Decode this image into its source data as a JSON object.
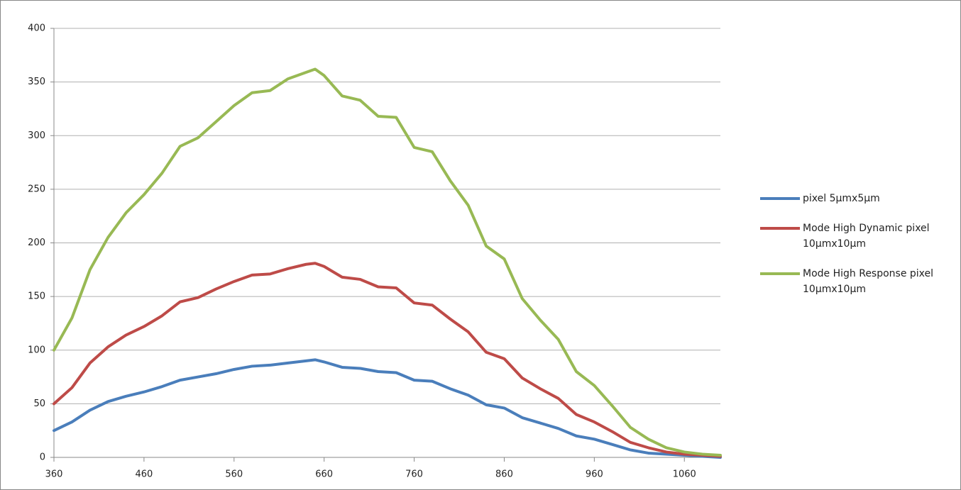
{
  "chart_data": {
    "type": "line",
    "x": [
      360,
      380,
      400,
      420,
      440,
      460,
      480,
      500,
      520,
      540,
      560,
      580,
      600,
      620,
      640,
      650,
      660,
      680,
      700,
      720,
      740,
      760,
      780,
      800,
      820,
      840,
      860,
      880,
      900,
      920,
      940,
      960,
      980,
      1000,
      1020,
      1040,
      1060,
      1080,
      1100
    ],
    "series": [
      {
        "name": "pixel 5µmx5µm",
        "color": "#4a7ebb",
        "values": [
          25,
          33,
          44,
          52,
          57,
          61,
          66,
          72,
          75,
          78,
          82,
          85,
          86,
          88,
          90,
          91,
          89,
          84,
          83,
          80,
          79,
          72,
          71,
          64,
          58,
          49,
          46,
          37,
          32,
          27,
          20,
          17,
          12,
          7,
          4,
          3,
          2,
          1,
          0
        ]
      },
      {
        "name": "Mode High Dynamic pixel 10µmx10µm",
        "color": "#be4b48",
        "values": [
          50,
          65,
          88,
          103,
          114,
          122,
          132,
          145,
          149,
          157,
          164,
          170,
          171,
          176,
          180,
          181,
          178,
          168,
          166,
          159,
          158,
          144,
          142,
          129,
          117,
          98,
          92,
          74,
          64,
          55,
          40,
          33,
          24,
          14,
          9,
          5,
          3,
          2,
          1
        ]
      },
      {
        "name": "Mode High Response pixel 10µmx10µm",
        "color": "#98b954",
        "values": [
          100,
          130,
          175,
          205,
          228,
          245,
          265,
          290,
          298,
          313,
          328,
          340,
          342,
          353,
          359,
          362,
          356,
          337,
          333,
          318,
          317,
          289,
          285,
          258,
          235,
          197,
          185,
          148,
          128,
          110,
          80,
          67,
          48,
          28,
          17,
          9,
          5,
          3,
          2
        ]
      }
    ],
    "xlim": [
      360,
      1100
    ],
    "xticks": [
      360,
      460,
      560,
      660,
      760,
      860,
      960,
      1060
    ],
    "ylim": [
      0,
      400
    ],
    "yticks": [
      0,
      50,
      100,
      150,
      200,
      250,
      300,
      350,
      400
    ],
    "grid": true,
    "legend": "right"
  }
}
